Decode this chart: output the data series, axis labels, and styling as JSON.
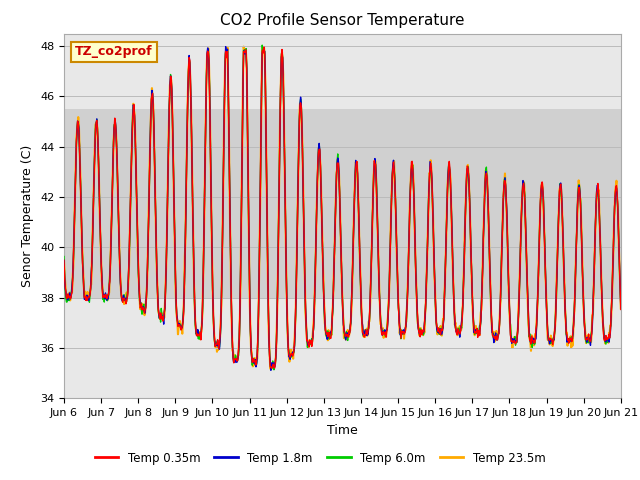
{
  "title": "CO2 Profile Sensor Temperature",
  "ylabel": "Senor Temperature (C)",
  "xlabel": "Time",
  "annotation_text": "TZ_co2prof",
  "annotation_color": "#cc0000",
  "annotation_bg": "#ffffcc",
  "annotation_border": "#cc8800",
  "ylim": [
    34,
    48.5
  ],
  "yticks": [
    34,
    36,
    38,
    40,
    42,
    44,
    46,
    48
  ],
  "xtick_labels": [
    "Jun 6",
    "Jun 7",
    "Jun 8",
    "Jun 9",
    "Jun 10",
    "Jun 11",
    "Jun 12",
    "Jun 13",
    "Jun 14",
    "Jun 15",
    "Jun 16",
    "Jun 17",
    "Jun 18",
    "Jun 19",
    "Jun 20",
    "Jun 21"
  ],
  "series_colors": [
    "#ff0000",
    "#0000cc",
    "#00cc00",
    "#ffaa00"
  ],
  "series_labels": [
    "Temp 0.35m",
    "Temp 1.8m",
    "Temp 6.0m",
    "Temp 23.5m"
  ],
  "series_lw": [
    1.0,
    1.0,
    1.0,
    1.5
  ],
  "plot_bg_color": "#e8e8e8",
  "band_color": "#d0d0d0",
  "band_ylim": [
    38.0,
    45.5
  ],
  "grid_color": "#bbbbbb",
  "title_fontsize": 11,
  "label_fontsize": 9,
  "tick_fontsize": 8
}
